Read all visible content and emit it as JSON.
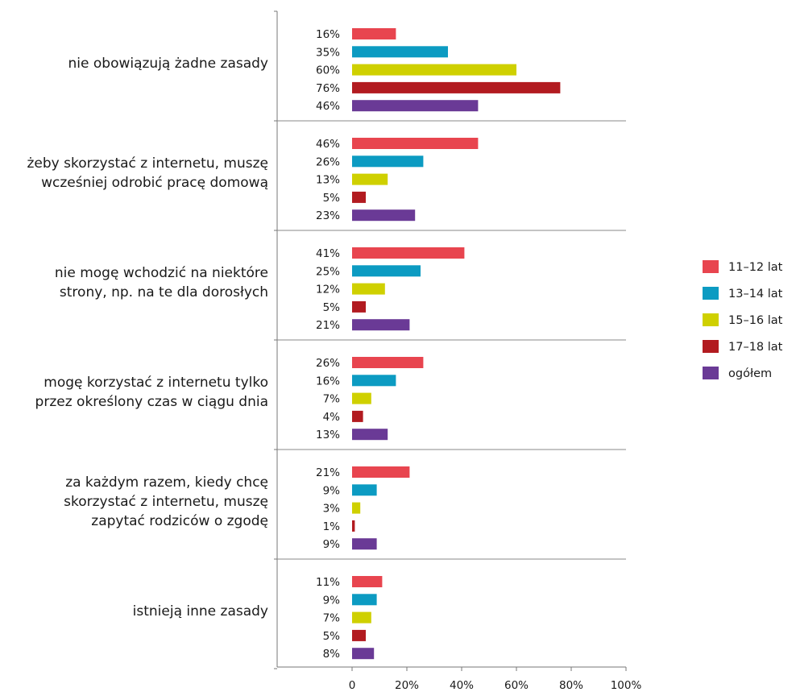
{
  "chart_data": {
    "type": "bar",
    "orientation": "horizontal",
    "title": "",
    "xlabel": "",
    "ylabel": "",
    "xlim": [
      0,
      100
    ],
    "x_ticks": [
      "0",
      "20%",
      "40%",
      "60%",
      "80%",
      "100%"
    ],
    "grid": false,
    "legend_position": "right",
    "categories": [
      [
        "nie obowiązują żadne zasady"
      ],
      [
        "żeby skorzystać z internetu, muszę",
        "wcześniej odrobić pracę domową"
      ],
      [
        "nie mogę wchodzić na niektóre",
        "strony, np. na te dla dorosłych"
      ],
      [
        "mogę korzystać z internetu tylko",
        "przez określony czas w ciągu dnia"
      ],
      [
        "za każdym razem, kiedy chcę",
        "skorzystać z internetu, muszę",
        "zapytać rodziców o zgodę"
      ],
      [
        "istnieją inne zasady"
      ]
    ],
    "series": [
      {
        "name": "11–12 lat",
        "color": "#e8454f",
        "values": [
          16,
          46,
          41,
          26,
          21,
          11
        ]
      },
      {
        "name": "13–14 lat",
        "color": "#0c9bc2",
        "values": [
          35,
          26,
          25,
          16,
          9,
          9
        ]
      },
      {
        "name": "15–16 lat",
        "color": "#cfd000",
        "values": [
          60,
          13,
          12,
          7,
          3,
          7
        ]
      },
      {
        "name": "17–18 lat",
        "color": "#b21b20",
        "values": [
          76,
          5,
          5,
          4,
          1,
          5
        ]
      },
      {
        "name": "ogółem",
        "color": "#6a3a96",
        "values": [
          46,
          23,
          21,
          13,
          9,
          8
        ]
      }
    ],
    "value_suffix": "%"
  }
}
